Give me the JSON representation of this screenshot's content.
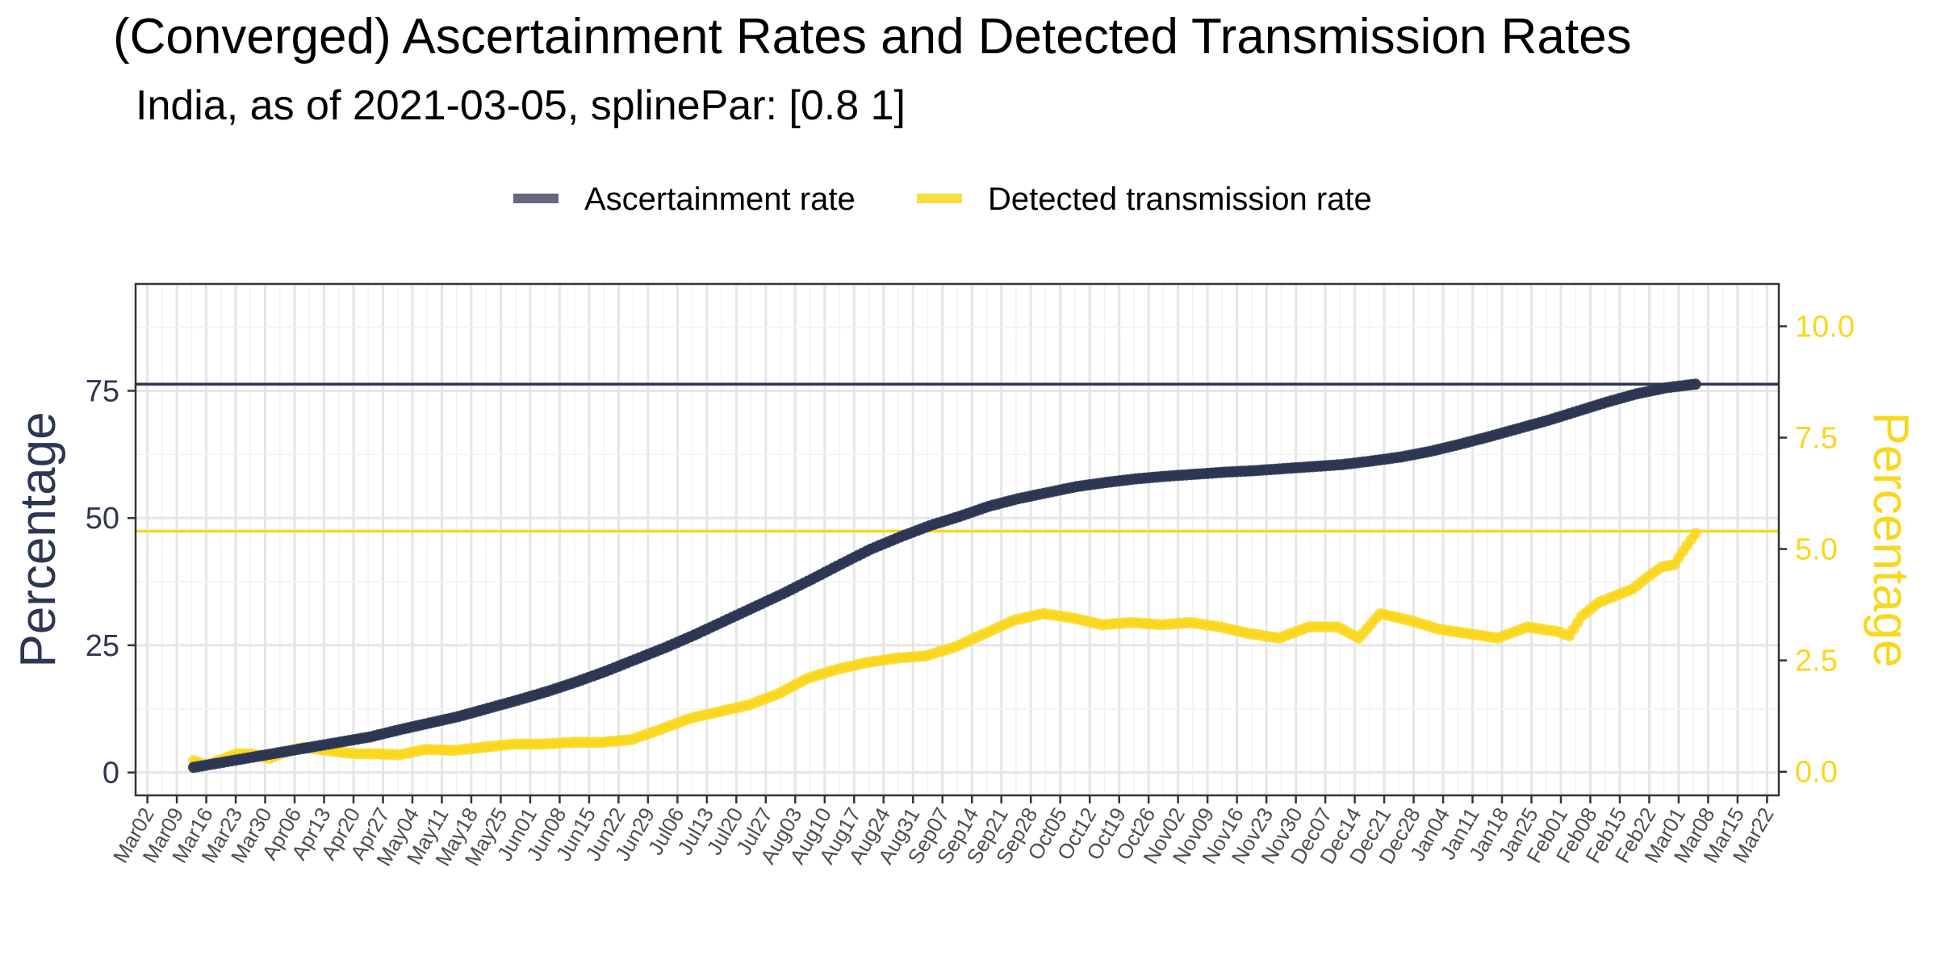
{
  "chart_data": {
    "type": "line",
    "title": "(Converged) Ascertainment Rates and Detected Transmission Rates",
    "subtitle": "India, as of 2021-03-05, splinePar: [0.8 1]",
    "ylabel_left": "Percentage",
    "ylabel_right": "Percentage",
    "ylim_left": [
      -4.5,
      96
    ],
    "ylim_right": [
      -0.53,
      10.95
    ],
    "yticks_left": [
      0,
      25,
      50,
      75
    ],
    "yticks_right": [
      "0.0",
      "2.5",
      "5.0",
      "7.5",
      "10.0"
    ],
    "x_start": "2020-03-02",
    "x_end": "2021-03-22",
    "xtick_labels": [
      "Mar02",
      "Mar09",
      "Mar16",
      "Mar23",
      "Mar30",
      "Apr06",
      "Apr13",
      "Apr20",
      "Apr27",
      "May04",
      "May11",
      "May18",
      "May25",
      "Jun01",
      "Jun08",
      "Jun15",
      "Jun22",
      "Jun29",
      "Jul06",
      "Jul13",
      "Jul20",
      "Jul27",
      "Aug03",
      "Aug10",
      "Aug17",
      "Aug24",
      "Aug31",
      "Sep07",
      "Sep14",
      "Sep21",
      "Sep28",
      "Oct05",
      "Oct12",
      "Oct19",
      "Oct26",
      "Nov02",
      "Nov09",
      "Nov16",
      "Nov23",
      "Nov30",
      "Dec07",
      "Dec14",
      "Dec21",
      "Dec28",
      "Jan04",
      "Jan11",
      "Jan18",
      "Jan25",
      "Feb01",
      "Feb08",
      "Feb15",
      "Feb22",
      "Mar01",
      "Mar08",
      "Mar15",
      "Mar22"
    ],
    "legend_position": "top",
    "grid": true,
    "series": [
      {
        "name": "Ascertainment rate",
        "axis": "left",
        "color": "#2d3754",
        "reference_line": 76.3,
        "points": [
          [
            "2020-03-13",
            1.0
          ],
          [
            "2020-03-20",
            2.0
          ],
          [
            "2020-03-27",
            3.0
          ],
          [
            "2020-04-03",
            4.0
          ],
          [
            "2020-04-10",
            5.0
          ],
          [
            "2020-04-17",
            6.0
          ],
          [
            "2020-04-24",
            7.0
          ],
          [
            "2020-05-01",
            8.4
          ],
          [
            "2020-05-08",
            9.7
          ],
          [
            "2020-05-15",
            11.0
          ],
          [
            "2020-05-22",
            12.6
          ],
          [
            "2020-05-29",
            14.2
          ],
          [
            "2020-06-05",
            15.9
          ],
          [
            "2020-06-12",
            17.8
          ],
          [
            "2020-06-19",
            19.9
          ],
          [
            "2020-06-26",
            22.2
          ],
          [
            "2020-07-03",
            24.5
          ],
          [
            "2020-07-10",
            27.0
          ],
          [
            "2020-07-17",
            29.7
          ],
          [
            "2020-07-24",
            32.4
          ],
          [
            "2020-07-31",
            35.1
          ],
          [
            "2020-08-07",
            38.0
          ],
          [
            "2020-08-14",
            41.0
          ],
          [
            "2020-08-21",
            43.9
          ],
          [
            "2020-08-28",
            46.3
          ],
          [
            "2020-09-04",
            48.5
          ],
          [
            "2020-09-11",
            50.3
          ],
          [
            "2020-09-18",
            52.3
          ],
          [
            "2020-09-25",
            53.8
          ],
          [
            "2020-10-02",
            55.0
          ],
          [
            "2020-10-09",
            56.2
          ],
          [
            "2020-10-16",
            57.0
          ],
          [
            "2020-10-23",
            57.7
          ],
          [
            "2020-10-30",
            58.2
          ],
          [
            "2020-11-06",
            58.6
          ],
          [
            "2020-11-13",
            59.0
          ],
          [
            "2020-11-20",
            59.3
          ],
          [
            "2020-11-27",
            59.7
          ],
          [
            "2020-12-04",
            60.1
          ],
          [
            "2020-12-11",
            60.5
          ],
          [
            "2020-12-18",
            61.2
          ],
          [
            "2020-12-25",
            62.0
          ],
          [
            "2021-01-01",
            63.1
          ],
          [
            "2021-01-08",
            64.5
          ],
          [
            "2021-01-15",
            66.0
          ],
          [
            "2021-01-22",
            67.6
          ],
          [
            "2021-01-29",
            69.2
          ],
          [
            "2021-02-05",
            71.0
          ],
          [
            "2021-02-12",
            72.8
          ],
          [
            "2021-02-19",
            74.4
          ],
          [
            "2021-02-26",
            75.6
          ],
          [
            "2021-03-05",
            76.3
          ]
        ]
      },
      {
        "name": "Detected transmission rate",
        "axis": "right",
        "color": "#f9d71c",
        "reference_line": 5.4,
        "points": [
          [
            "2020-03-13",
            0.25
          ],
          [
            "2020-03-16",
            0.15
          ],
          [
            "2020-03-19",
            0.25
          ],
          [
            "2020-03-23",
            0.4
          ],
          [
            "2020-03-27",
            0.4
          ],
          [
            "2020-03-31",
            0.3
          ],
          [
            "2020-04-04",
            0.45
          ],
          [
            "2020-04-08",
            0.55
          ],
          [
            "2020-04-12",
            0.5
          ],
          [
            "2020-04-16",
            0.45
          ],
          [
            "2020-04-21",
            0.4
          ],
          [
            "2020-04-26",
            0.4
          ],
          [
            "2020-05-01",
            0.38
          ],
          [
            "2020-05-07",
            0.5
          ],
          [
            "2020-05-14",
            0.48
          ],
          [
            "2020-05-21",
            0.55
          ],
          [
            "2020-05-28",
            0.62
          ],
          [
            "2020-06-04",
            0.62
          ],
          [
            "2020-06-11",
            0.66
          ],
          [
            "2020-06-18",
            0.66
          ],
          [
            "2020-06-25",
            0.72
          ],
          [
            "2020-07-02",
            0.95
          ],
          [
            "2020-07-09",
            1.2
          ],
          [
            "2020-07-16",
            1.35
          ],
          [
            "2020-07-23",
            1.5
          ],
          [
            "2020-07-30",
            1.75
          ],
          [
            "2020-08-06",
            2.1
          ],
          [
            "2020-08-13",
            2.3
          ],
          [
            "2020-08-20",
            2.45
          ],
          [
            "2020-08-27",
            2.55
          ],
          [
            "2020-09-03",
            2.6
          ],
          [
            "2020-09-10",
            2.8
          ],
          [
            "2020-09-17",
            3.1
          ],
          [
            "2020-09-24",
            3.4
          ],
          [
            "2020-10-01",
            3.55
          ],
          [
            "2020-10-08",
            3.45
          ],
          [
            "2020-10-15",
            3.3
          ],
          [
            "2020-10-22",
            3.35
          ],
          [
            "2020-10-29",
            3.3
          ],
          [
            "2020-11-05",
            3.35
          ],
          [
            "2020-11-12",
            3.25
          ],
          [
            "2020-11-19",
            3.1
          ],
          [
            "2020-11-26",
            3.0
          ],
          [
            "2020-12-03",
            3.25
          ],
          [
            "2020-12-10",
            3.25
          ],
          [
            "2020-12-15",
            3.0
          ],
          [
            "2020-12-20",
            3.55
          ],
          [
            "2020-12-27",
            3.4
          ],
          [
            "2021-01-03",
            3.2
          ],
          [
            "2021-01-10",
            3.1
          ],
          [
            "2021-01-17",
            3.0
          ],
          [
            "2021-01-24",
            3.25
          ],
          [
            "2021-01-31",
            3.15
          ],
          [
            "2021-02-03",
            3.05
          ],
          [
            "2021-02-06",
            3.5
          ],
          [
            "2021-02-10",
            3.8
          ],
          [
            "2021-02-14",
            3.95
          ],
          [
            "2021-02-18",
            4.1
          ],
          [
            "2021-02-22",
            4.4
          ],
          [
            "2021-02-25",
            4.6
          ],
          [
            "2021-02-28",
            4.65
          ],
          [
            "2021-03-02",
            4.95
          ],
          [
            "2021-03-05",
            5.35
          ]
        ]
      }
    ]
  }
}
